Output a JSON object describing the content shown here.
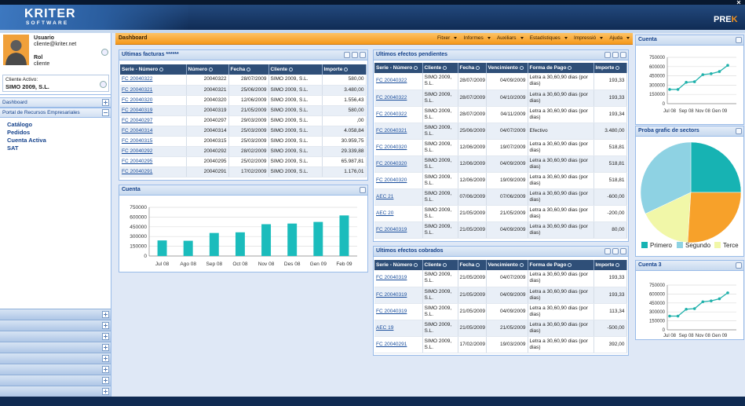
{
  "header": {
    "logo": "KRITER",
    "logo_sub": "SOFTWARE",
    "brand": "PRE",
    "brand_accent": "K"
  },
  "user": {
    "usuario_label": "Usuario",
    "usuario": "cliente@kriter.net",
    "rol_label": "Rol",
    "rol": "cliente",
    "cliente_activo_label": "Cliente Activo:",
    "cliente_activo": "SIMO 2009, S.L."
  },
  "nav": {
    "sections": [
      "Dashboard",
      "Portal de Recursos Empresariales"
    ],
    "links": [
      "Catálogo",
      "Pedidos",
      "Cuenta Activa",
      "SAT"
    ]
  },
  "toolbar": {
    "title": "Dashboard",
    "menu": [
      "Fitxer",
      "Informes",
      "Auxiliars",
      "Estadístiques",
      "Impressió",
      "Ajuda"
    ]
  },
  "facturas": {
    "title": "Ultimas facturas ******",
    "columns": [
      "Serie - Número",
      "Número",
      "Fecha",
      "Cliente",
      "Importe"
    ],
    "rows": [
      [
        "FC 20040322",
        "20040322",
        "28/07/2009",
        "SIMO 2009, S.L.",
        "580,00"
      ],
      [
        "FC 20040321",
        "20040321",
        "25/06/2009",
        "SIMO 2009, S.L.",
        "3.480,00"
      ],
      [
        "FC 20040320",
        "20040320",
        "12/06/2009",
        "SIMO 2009, S.L.",
        "1.556,43"
      ],
      [
        "FC 20040319",
        "20040319",
        "21/05/2009",
        "SIMO 2009, S.L.",
        "580,00"
      ],
      [
        "FC 20040297",
        "20040297",
        "29/03/2009",
        "SIMO 2009, S.L.",
        ",00"
      ],
      [
        "FC 20040314",
        "20040314",
        "25/03/2009",
        "SIMO 2009, S.L.",
        "4.058,84"
      ],
      [
        "FC 20040315",
        "20040315",
        "25/03/2009",
        "SIMO 2009, S.L.",
        "30.959,75"
      ],
      [
        "FC 20040292",
        "20040292",
        "28/02/2009",
        "SIMO 2009, S.L.",
        "29.339,88"
      ],
      [
        "FC 20040295",
        "20040295",
        "25/02/2009",
        "SIMO 2009, S.L.",
        "65.987,81"
      ],
      [
        "FC 20040291",
        "20040291",
        "17/02/2009",
        "SIMO 2009, S.L.",
        "1.176,01"
      ]
    ]
  },
  "pendientes": {
    "title": "Ultimos efectos pendientes",
    "columns": [
      "Serie - Número",
      "Cliente",
      "Fecha",
      "Vencimiento",
      "Forma de Pago",
      "Importe"
    ],
    "rows": [
      [
        "FC 20040322",
        "SIMO 2009, S.L.",
        "28/07/2009",
        "04/09/2009",
        "Letra a 30,60,90 dias (por dias)",
        "193,33"
      ],
      [
        "FC 20040322",
        "SIMO 2009, S.L.",
        "28/07/2009",
        "04/10/2009",
        "Letra a 30,60,90 dias (por dias)",
        "193,33"
      ],
      [
        "FC 20040322",
        "SIMO 2009, S.L.",
        "28/07/2009",
        "04/11/2009",
        "Letra a 30,60,90 dias (por dias)",
        "193,34"
      ],
      [
        "FC 20040321",
        "SIMO 2009, S.L.",
        "25/06/2009",
        "04/07/2009",
        "Efectivo",
        "3.480,00"
      ],
      [
        "FC 20040320",
        "SIMO 2009, S.L.",
        "12/06/2009",
        "19/07/2009",
        "Letra a 30,60,90 dias (por dias)",
        "518,81"
      ],
      [
        "FC 20040320",
        "SIMO 2009, S.L.",
        "12/06/2009",
        "04/09/2009",
        "Letra a 30,60,90 dias (por dias)",
        "518,81"
      ],
      [
        "FC 20040320",
        "SIMO 2009, S.L.",
        "12/06/2009",
        "19/09/2009",
        "Letra a 30,60,90 dias (por dias)",
        "518,81"
      ],
      [
        "AEC 21",
        "SIMO 2009, S.L.",
        "07/06/2009",
        "07/06/2009",
        "Letra a 30,60,90 dias (por dias)",
        "-600,00"
      ],
      [
        "AEC 20",
        "SIMO 2009, S.L.",
        "21/05/2009",
        "21/05/2009",
        "Letra a 30,60,90 dias (por dias)",
        "-200,00"
      ],
      [
        "FC 20040319",
        "SIMO 2009, S.L.",
        "21/05/2009",
        "04/09/2009",
        "Letra a 30,60,90 dias (por dias)",
        "80,00"
      ]
    ]
  },
  "cobrados": {
    "title": "Ultimos efectos cobrados",
    "columns": [
      "Serie - Número",
      "Cliente",
      "Fecha",
      "Vencimiento",
      "Forma de Pago",
      "Importe"
    ],
    "rows": [
      [
        "FC 20040319",
        "SIMO 2009, S.L.",
        "21/05/2009",
        "04/07/2009",
        "Letra a 30,60,90 dias (por dias)",
        "193,33"
      ],
      [
        "FC 20040319",
        "SIMO 2009, S.L.",
        "21/05/2009",
        "04/09/2009",
        "Letra a 30,60,90 dias (por dias)",
        "193,33"
      ],
      [
        "FC 20040319",
        "SIMO 2009, S.L.",
        "21/05/2009",
        "04/09/2009",
        "Letra a 30,60,90 dias (por dias)",
        "113,34"
      ],
      [
        "AEC 19",
        "SIMO 2009, S.L.",
        "21/05/2009",
        "21/05/2009",
        "Letra a 30,60,90 dias (por dias)",
        "-500,00"
      ],
      [
        "FC 20040291",
        "SIMO 2009, S.L.",
        "17/02/2009",
        "19/03/2009",
        "Letra a 30,60,90 dias (por dias)",
        "392,00"
      ]
    ]
  },
  "chart_data": [
    {
      "type": "bar",
      "title": "Cuenta",
      "categories": [
        "Jul 08",
        "Ago 08",
        "Sep 08",
        "Oct 08",
        "Nov 08",
        "Des 08",
        "Gen 09",
        "Feb 09"
      ],
      "values": [
        240000,
        235000,
        355000,
        365000,
        490000,
        500000,
        525000,
        625000
      ],
      "color": "#1bbcbc",
      "ylim": [
        0,
        750000
      ],
      "yticks": [
        0,
        150000,
        300000,
        450000,
        600000,
        750000
      ],
      "grid": true
    },
    {
      "type": "line",
      "title": "Cuenta",
      "categories": [
        "Jul 08",
        null,
        "Sep 08",
        null,
        "Nov 08",
        null,
        "Gen 09",
        null
      ],
      "values": [
        230000,
        230000,
        345000,
        355000,
        470000,
        485000,
        520000,
        620000
      ],
      "color": "#1fb1ab",
      "ylim": [
        0,
        750000
      ],
      "yticks": [
        0,
        150000,
        300000,
        450000,
        600000,
        750000
      ],
      "grid": true
    },
    {
      "type": "pie",
      "title": "Proba grafic de sectors",
      "categories": [
        "Primero",
        "Segundo",
        "Terce",
        null
      ],
      "values": [
        25,
        32,
        17,
        26
      ],
      "colors": [
        "#17b3b3",
        "#8ed2e3",
        "#f1f7a8",
        "#f7a12a"
      ]
    },
    {
      "type": "line",
      "title": "Cuenta 3",
      "categories": [
        "Jul 08",
        null,
        "Sep 08",
        null,
        "Nov 08",
        null,
        "Gen 09",
        null
      ],
      "values": [
        230000,
        230000,
        345000,
        355000,
        470000,
        485000,
        520000,
        620000
      ],
      "color": "#1fb1ab",
      "ylim": [
        0,
        750000
      ],
      "yticks": [
        0,
        150000,
        300000,
        450000,
        600000,
        750000
      ],
      "grid": true
    }
  ]
}
